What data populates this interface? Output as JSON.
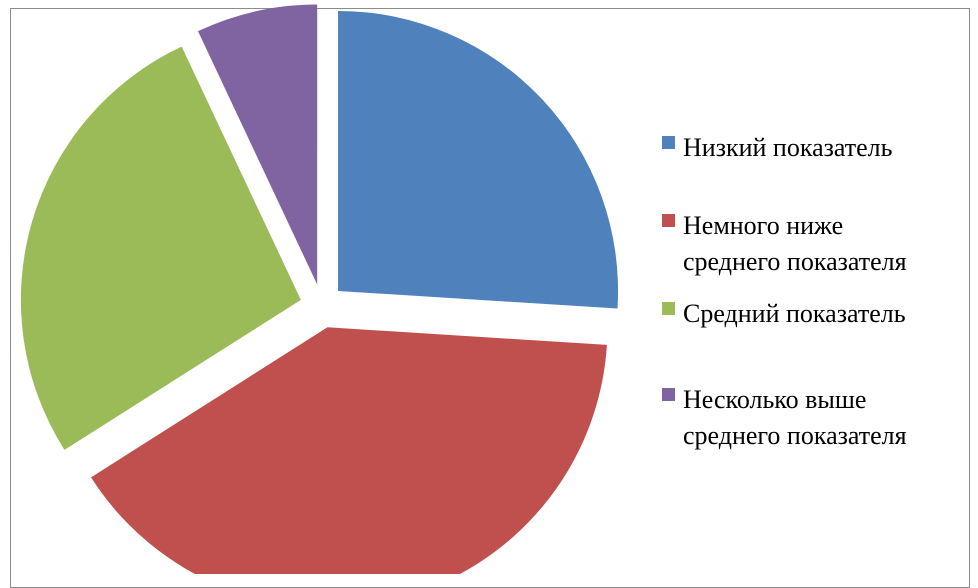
{
  "chart_data": {
    "type": "pie",
    "title": "",
    "exploded": true,
    "legend_position": "right",
    "slices": [
      {
        "label": "Низкий показатель",
        "label_lines": [
          "Низкий показатель"
        ],
        "value": 26,
        "color": "#4F81BD"
      },
      {
        "label": "Немного ниже среднего показателя",
        "label_lines": [
          "Немного ниже",
          "среднего показателя"
        ],
        "value": 40,
        "color": "#C0504D"
      },
      {
        "label": "Средний показатель",
        "label_lines": [
          "Средний показатель"
        ],
        "value": 27,
        "color": "#9BBB59"
      },
      {
        "label": "Несколько выше среднего показателя",
        "label_lines": [
          "Несколько выше",
          "среднего показателя"
        ],
        "value": 7,
        "color": "#8064A2"
      }
    ]
  }
}
